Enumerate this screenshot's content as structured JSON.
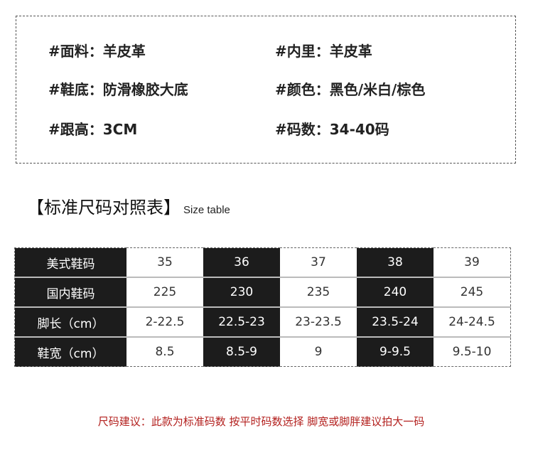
{
  "specs": [
    {
      "label": "#面料：羊皮革"
    },
    {
      "label": "#内里：羊皮革"
    },
    {
      "label": "#鞋底：防滑橡胶大底"
    },
    {
      "label": "#颜色：黑色/米白/棕色"
    },
    {
      "label": "#跟高：3CM"
    },
    {
      "label": "#码数：34-40码"
    }
  ],
  "size_table": {
    "title": "【标准尺码对照表】",
    "subtitle": "Size table",
    "rows": [
      {
        "header": "美式鞋码",
        "cells": [
          "35",
          "36",
          "37",
          "38",
          "39"
        ]
      },
      {
        "header": "国内鞋码",
        "cells": [
          "225",
          "230",
          "235",
          "240",
          "245"
        ]
      },
      {
        "header": "脚长（cm）",
        "cells": [
          "2-22.5",
          "22.5-23",
          "23-23.5",
          "23.5-24",
          "24-24.5"
        ]
      },
      {
        "header": "鞋宽（cm）",
        "cells": [
          "8.5",
          "8.5-9",
          "9",
          "9-9.5",
          "9.5-10"
        ]
      }
    ]
  },
  "note": "尺码建议：此款为标准码数 按平时码数选择 脚宽或脚胖建议拍大一码",
  "colors": {
    "dark_cell": "#1c1c1c",
    "note": "#b3201e"
  }
}
